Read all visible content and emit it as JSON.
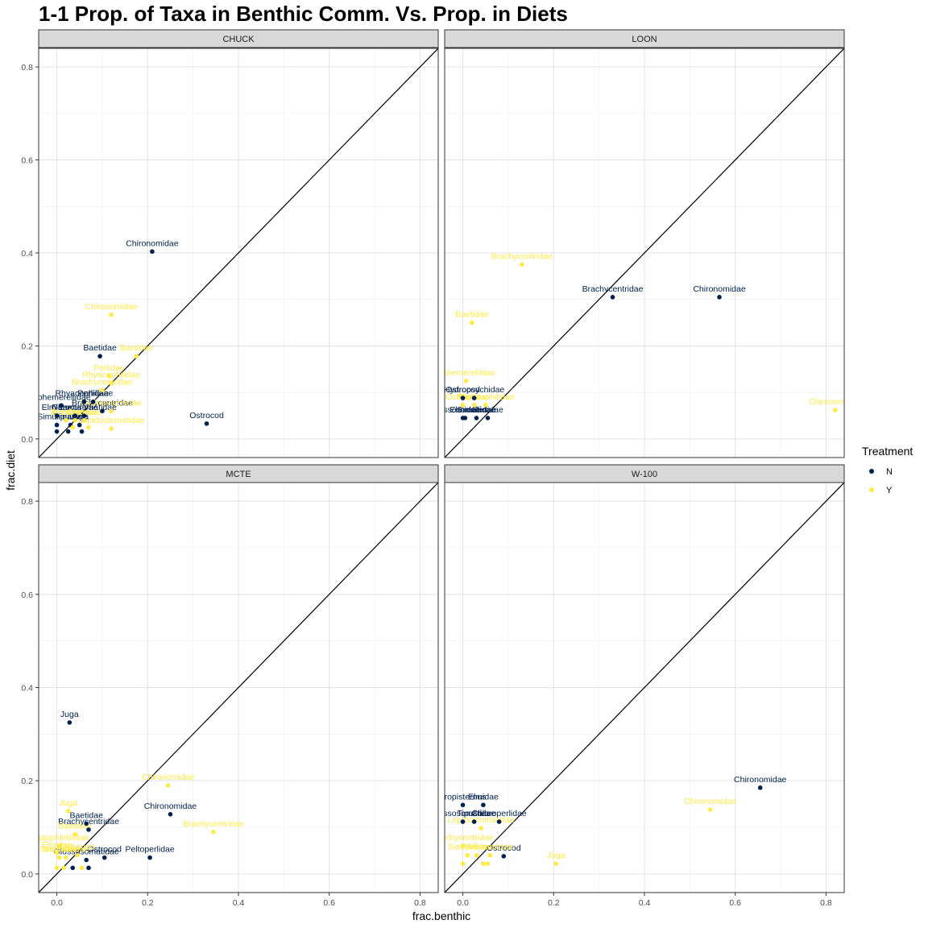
{
  "title": "1-1 Prop. of Taxa in Benthic Comm. Vs. Prop. in Diets",
  "chart_data": {
    "type": "scatter",
    "title": "1-1 Prop. of Taxa in Benthic Comm. Vs. Prop. in Diets",
    "xlabel": "frac.benthic",
    "ylabel": "frac.diet",
    "xlim": [
      -0.04,
      0.84
    ],
    "ylim": [
      -0.04,
      0.84
    ],
    "x_ticks": [
      0.0,
      0.2,
      0.4,
      0.6,
      0.8
    ],
    "y_ticks": [
      0.0,
      0.2,
      0.4,
      0.6,
      0.8
    ],
    "x_tick_labels": [
      "0.0",
      "0.2",
      "0.4",
      "0.6",
      "0.8"
    ],
    "y_tick_labels": [
      "0.0",
      "0.2",
      "0.4",
      "0.6",
      "0.8"
    ],
    "reference_line": "y = x",
    "grid": true,
    "legend": {
      "title": "Treatment",
      "position": "right",
      "entries": [
        {
          "label": "N",
          "color": "#00204D"
        },
        {
          "label": "Y",
          "color": "#FFEA46"
        }
      ]
    },
    "series_colors": {
      "N": "#00204D",
      "Y": "#FFEA46"
    },
    "panels": [
      {
        "name": "CHUCK",
        "points": [
          {
            "x": 0.21,
            "y": 0.403,
            "label": "Chironomidae",
            "treatment": "N"
          },
          {
            "x": 0.12,
            "y": 0.267,
            "label": "Chironomidae",
            "treatment": "Y"
          },
          {
            "x": 0.095,
            "y": 0.178,
            "label": "Baetidae",
            "treatment": "N"
          },
          {
            "x": 0.175,
            "y": 0.178,
            "label": "Baetidae",
            "treatment": "Y"
          },
          {
            "x": 0.115,
            "y": 0.135,
            "label": "Perlidae",
            "treatment": "Y"
          },
          {
            "x": 0.12,
            "y": 0.12,
            "label": "Rhyacophilidae",
            "treatment": "Y"
          },
          {
            "x": 0.1,
            "y": 0.105,
            "label": "Brachycentridae",
            "treatment": "Y"
          },
          {
            "x": 0.06,
            "y": 0.08,
            "label": "Rhyacophilidae",
            "treatment": "N"
          },
          {
            "x": 0.08,
            "y": 0.08,
            "label": "Perlidae",
            "treatment": "N"
          },
          {
            "x": 0.01,
            "y": 0.072,
            "label": "Ephemerellidae",
            "treatment": "N"
          },
          {
            "x": 0.1,
            "y": 0.06,
            "label": "Brachycentridae",
            "treatment": "N"
          },
          {
            "x": 0.12,
            "y": 0.06,
            "label": "Hydropsychidae",
            "treatment": "Y"
          },
          {
            "x": 0.33,
            "y": 0.033,
            "label": "Ostrocod",
            "treatment": "N"
          },
          {
            "x": 0.0,
            "y": 0.05,
            "label": "Elmidae",
            "treatment": "N"
          },
          {
            "x": 0.04,
            "y": 0.05,
            "label": "Nemouridae",
            "treatment": "N"
          },
          {
            "x": 0.06,
            "y": 0.05,
            "label": "Glossosomatidae",
            "treatment": "N"
          },
          {
            "x": 0.12,
            "y": 0.022,
            "label": "Lepidostomatidae",
            "treatment": "Y"
          },
          {
            "x": 0.0,
            "y": 0.03,
            "label": "Simuliidae",
            "treatment": "N"
          },
          {
            "x": 0.03,
            "y": 0.03,
            "label": "Tipulidae",
            "treatment": "N"
          },
          {
            "x": 0.05,
            "y": 0.03,
            "label": "Juga",
            "treatment": "N"
          },
          {
            "x": 0.0,
            "y": 0.016,
            "label": "",
            "treatment": "N"
          },
          {
            "x": 0.025,
            "y": 0.016,
            "label": "",
            "treatment": "N"
          },
          {
            "x": 0.055,
            "y": 0.016,
            "label": "",
            "treatment": "N"
          },
          {
            "x": 0.02,
            "y": 0.04,
            "label": "Elmidae",
            "treatment": "Y"
          },
          {
            "x": 0.04,
            "y": 0.04,
            "label": "Nemouridae",
            "treatment": "Y"
          },
          {
            "x": 0.06,
            "y": 0.04,
            "label": "Ostrocod",
            "treatment": "Y"
          },
          {
            "x": 0.035,
            "y": 0.025,
            "label": "",
            "treatment": "Y"
          },
          {
            "x": 0.07,
            "y": 0.025,
            "label": "",
            "treatment": "Y"
          }
        ]
      },
      {
        "name": "LOON",
        "points": [
          {
            "x": 0.13,
            "y": 0.375,
            "label": "Brachycentridae",
            "treatment": "Y"
          },
          {
            "x": 0.33,
            "y": 0.305,
            "label": "Brachycentridae",
            "treatment": "N"
          },
          {
            "x": 0.565,
            "y": 0.305,
            "label": "Chironomidae",
            "treatment": "N"
          },
          {
            "x": 0.02,
            "y": 0.25,
            "label": "Baetidae",
            "treatment": "Y"
          },
          {
            "x": 0.007,
            "y": 0.125,
            "label": "Ephemerellidae",
            "treatment": "Y"
          },
          {
            "x": 0.0,
            "y": 0.088,
            "label": "Ostrocod",
            "treatment": "N"
          },
          {
            "x": 0.025,
            "y": 0.088,
            "label": "Hydropsychidae",
            "treatment": "N"
          },
          {
            "x": 0.82,
            "y": 0.062,
            "label": "Chironomidae",
            "treatment": "Y"
          },
          {
            "x": 0.0,
            "y": 0.073,
            "label": "Ostrocod",
            "treatment": "Y"
          },
          {
            "x": 0.025,
            "y": 0.073,
            "label": "Perlidae",
            "treatment": "Y"
          },
          {
            "x": 0.05,
            "y": 0.073,
            "label": "Rhyacophilidae",
            "treatment": "Y"
          },
          {
            "x": 0.0,
            "y": 0.045,
            "label": "Glossosomatidae",
            "treatment": "N"
          },
          {
            "x": 0.005,
            "y": 0.045,
            "label": "Elmidae",
            "treatment": "N"
          },
          {
            "x": 0.03,
            "y": 0.045,
            "label": "Simuliidae",
            "treatment": "N"
          },
          {
            "x": 0.055,
            "y": 0.045,
            "label": "Perlidae",
            "treatment": "N"
          }
        ]
      },
      {
        "name": "MCTE",
        "points": [
          {
            "x": 0.028,
            "y": 0.325,
            "label": "Juga",
            "treatment": "N"
          },
          {
            "x": 0.245,
            "y": 0.19,
            "label": "Chironomidae",
            "treatment": "Y"
          },
          {
            "x": 0.025,
            "y": 0.135,
            "label": "Juga",
            "treatment": "Y"
          },
          {
            "x": 0.25,
            "y": 0.128,
            "label": "Chironomidae",
            "treatment": "N"
          },
          {
            "x": 0.345,
            "y": 0.09,
            "label": "Brachycentridae",
            "treatment": "Y"
          },
          {
            "x": 0.065,
            "y": 0.108,
            "label": "Baetidae",
            "treatment": "N"
          },
          {
            "x": 0.07,
            "y": 0.095,
            "label": "Brachycentridae",
            "treatment": "N"
          },
          {
            "x": 0.04,
            "y": 0.085,
            "label": "Baetidae",
            "treatment": "Y"
          },
          {
            "x": 0.005,
            "y": 0.06,
            "label": "Leptophlebiidae",
            "treatment": "Y"
          },
          {
            "x": 0.205,
            "y": 0.035,
            "label": "Peltoperlidae",
            "treatment": "N"
          },
          {
            "x": 0.105,
            "y": 0.035,
            "label": "Ostrocod",
            "treatment": "N"
          },
          {
            "x": 0.045,
            "y": 0.04,
            "label": "Ostrocod",
            "treatment": "Y"
          },
          {
            "x": 0.0,
            "y": 0.045,
            "label": "Elmidae",
            "treatment": "Y"
          },
          {
            "x": 0.065,
            "y": 0.03,
            "label": "Glossosomatidae",
            "treatment": "N"
          },
          {
            "x": 0.005,
            "y": 0.035,
            "label": "Simuliidae",
            "treatment": "Y"
          },
          {
            "x": 0.02,
            "y": 0.035,
            "label": "Nemouridae",
            "treatment": "Y"
          },
          {
            "x": 0.035,
            "y": 0.013,
            "label": "",
            "treatment": "N"
          },
          {
            "x": 0.07,
            "y": 0.013,
            "label": "",
            "treatment": "N"
          },
          {
            "x": 0.0,
            "y": 0.013,
            "label": "",
            "treatment": "Y"
          },
          {
            "x": 0.015,
            "y": 0.013,
            "label": "",
            "treatment": "Y"
          },
          {
            "x": 0.055,
            "y": 0.013,
            "label": "",
            "treatment": "Y"
          }
        ]
      },
      {
        "name": "W-100",
        "points": [
          {
            "x": 0.655,
            "y": 0.185,
            "label": "Chironomidae",
            "treatment": "N"
          },
          {
            "x": 0.545,
            "y": 0.138,
            "label": "Chironomidae",
            "treatment": "Y"
          },
          {
            "x": 0.0,
            "y": 0.148,
            "label": "Tropisternus",
            "treatment": "N"
          },
          {
            "x": 0.045,
            "y": 0.148,
            "label": "Elmidae",
            "treatment": "N"
          },
          {
            "x": 0.0,
            "y": 0.112,
            "label": "Glossosomatidae",
            "treatment": "N"
          },
          {
            "x": 0.025,
            "y": 0.112,
            "label": "Tipulidae",
            "treatment": "N"
          },
          {
            "x": 0.08,
            "y": 0.112,
            "label": "Chloroperlidae",
            "treatment": "N"
          },
          {
            "x": 0.04,
            "y": 0.098,
            "label": "Lepidostomatidae",
            "treatment": "Y"
          },
          {
            "x": 0.205,
            "y": 0.022,
            "label": "Juga",
            "treatment": "Y"
          },
          {
            "x": 0.09,
            "y": 0.038,
            "label": "Ostrocod",
            "treatment": "N"
          },
          {
            "x": 0.06,
            "y": 0.04,
            "label": "Nemouridae",
            "treatment": "Y"
          },
          {
            "x": 0.0,
            "y": 0.06,
            "label": "Brachycentridae",
            "treatment": "Y"
          },
          {
            "x": 0.01,
            "y": 0.04,
            "label": "Simuliidae",
            "treatment": "Y"
          },
          {
            "x": 0.03,
            "y": 0.04,
            "label": "Perlidae",
            "treatment": "Y"
          },
          {
            "x": 0.0,
            "y": 0.022,
            "label": "",
            "treatment": "Y"
          },
          {
            "x": 0.045,
            "y": 0.022,
            "label": "",
            "treatment": "Y"
          },
          {
            "x": 0.055,
            "y": 0.022,
            "label": "",
            "treatment": "Y"
          }
        ]
      }
    ]
  }
}
